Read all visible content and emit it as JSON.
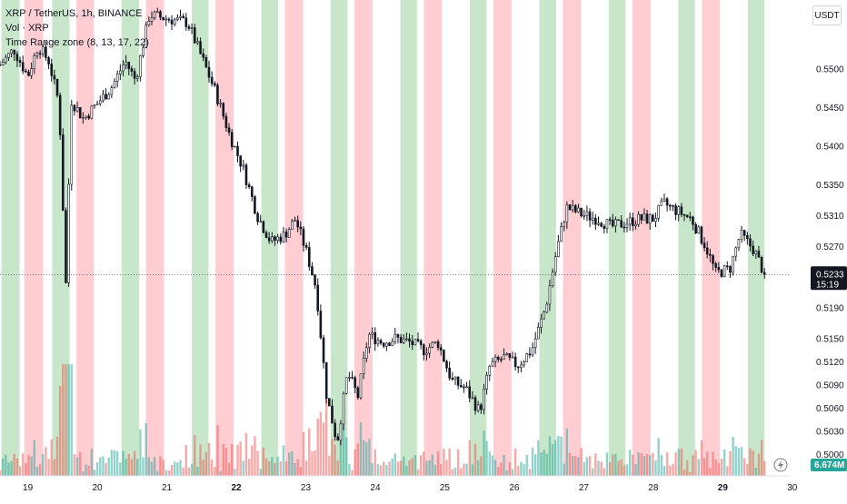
{
  "legend": {
    "symbol": "XRP / TetherUS, 1h, BINANCE",
    "volume": "Vol · XRP",
    "indicator": "Time Range zone (8, 13, 17, 22)"
  },
  "axis": {
    "currency": "USDT",
    "price_label": "0.5233",
    "countdown": "15:19",
    "volume_label": "6.674M"
  },
  "colors": {
    "up": "#26a69a",
    "down": "#ef5350",
    "candle": "#131722",
    "zone_green": "#c8e6c9",
    "zone_red": "#ffcdd2",
    "price_tag": "#131722",
    "volume_tag": "#26a69a"
  },
  "chart_data": {
    "type": "candlestick",
    "ylim": [
      0.5,
      0.5575
    ],
    "y_ticks": [
      "0.5500",
      "0.5450",
      "0.5400",
      "0.5350",
      "0.5310",
      "0.5270",
      "0.5233",
      "0.5190",
      "0.5150",
      "0.5120",
      "0.5090",
      "0.5060",
      "0.5030",
      "0.5000"
    ],
    "y_tick_values": [
      0.55,
      0.545,
      0.54,
      0.535,
      0.531,
      0.527,
      0.5233,
      0.519,
      0.515,
      0.512,
      0.509,
      0.506,
      0.503,
      0.5
    ],
    "x_ticks": [
      "19",
      "20",
      "21",
      "22",
      "23",
      "24",
      "25",
      "26",
      "27",
      "28",
      "29",
      "30"
    ],
    "bold_x_ticks": [
      "22",
      "29"
    ],
    "x_start": 18.6,
    "x_end": 29.95,
    "zones": [
      {
        "start": 18.62,
        "end": 18.88,
        "color": "green"
      },
      {
        "start": 18.95,
        "end": 19.22,
        "color": "red"
      },
      {
        "start": 19.35,
        "end": 19.6,
        "color": "green"
      },
      {
        "start": 19.7,
        "end": 19.95,
        "color": "red"
      },
      {
        "start": 20.35,
        "end": 20.6,
        "color": "green"
      },
      {
        "start": 20.7,
        "end": 20.96,
        "color": "red"
      },
      {
        "start": 21.36,
        "end": 21.6,
        "color": "green"
      },
      {
        "start": 21.7,
        "end": 21.96,
        "color": "red"
      },
      {
        "start": 22.36,
        "end": 22.6,
        "color": "green"
      },
      {
        "start": 22.7,
        "end": 22.96,
        "color": "red"
      },
      {
        "start": 23.36,
        "end": 23.6,
        "color": "green"
      },
      {
        "start": 23.7,
        "end": 23.96,
        "color": "red"
      },
      {
        "start": 24.36,
        "end": 24.6,
        "color": "green"
      },
      {
        "start": 24.7,
        "end": 24.96,
        "color": "red"
      },
      {
        "start": 25.36,
        "end": 25.6,
        "color": "green"
      },
      {
        "start": 25.7,
        "end": 25.96,
        "color": "red"
      },
      {
        "start": 26.36,
        "end": 26.6,
        "color": "green"
      },
      {
        "start": 26.7,
        "end": 26.96,
        "color": "red"
      },
      {
        "start": 27.36,
        "end": 27.6,
        "color": "green"
      },
      {
        "start": 27.7,
        "end": 27.96,
        "color": "red"
      },
      {
        "start": 28.36,
        "end": 28.6,
        "color": "green"
      },
      {
        "start": 28.7,
        "end": 28.96,
        "color": "red"
      },
      {
        "start": 29.36,
        "end": 29.6,
        "color": "green"
      }
    ],
    "candle_count": 268,
    "price_path": [
      [
        18.6,
        0.5505
      ],
      [
        18.8,
        0.5525
      ],
      [
        19.0,
        0.549
      ],
      [
        19.15,
        0.553
      ],
      [
        19.3,
        0.551
      ],
      [
        19.45,
        0.5455
      ],
      [
        19.55,
        0.5215
      ],
      [
        19.62,
        0.546
      ],
      [
        19.8,
        0.5435
      ],
      [
        20.0,
        0.5455
      ],
      [
        20.2,
        0.5475
      ],
      [
        20.4,
        0.551
      ],
      [
        20.55,
        0.5485
      ],
      [
        20.75,
        0.557
      ],
      [
        21.0,
        0.5565
      ],
      [
        21.3,
        0.556
      ],
      [
        21.5,
        0.5515
      ],
      [
        21.7,
        0.547
      ],
      [
        21.9,
        0.5415
      ],
      [
        22.1,
        0.537
      ],
      [
        22.3,
        0.531
      ],
      [
        22.5,
        0.5275
      ],
      [
        22.7,
        0.5285
      ],
      [
        22.85,
        0.5305
      ],
      [
        23.0,
        0.5265
      ],
      [
        23.15,
        0.5215
      ],
      [
        23.3,
        0.5075
      ],
      [
        23.45,
        0.5015
      ],
      [
        23.6,
        0.5105
      ],
      [
        23.75,
        0.5075
      ],
      [
        23.9,
        0.5155
      ],
      [
        24.1,
        0.5145
      ],
      [
        24.3,
        0.515
      ],
      [
        24.5,
        0.5145
      ],
      [
        24.7,
        0.5135
      ],
      [
        24.9,
        0.5145
      ],
      [
        25.1,
        0.5095
      ],
      [
        25.3,
        0.5085
      ],
      [
        25.5,
        0.5055
      ],
      [
        25.65,
        0.5115
      ],
      [
        25.85,
        0.5125
      ],
      [
        26.05,
        0.5115
      ],
      [
        26.25,
        0.5135
      ],
      [
        26.45,
        0.519
      ],
      [
        26.6,
        0.526
      ],
      [
        26.75,
        0.532
      ],
      [
        27.0,
        0.531
      ],
      [
        27.2,
        0.5305
      ],
      [
        27.4,
        0.5295
      ],
      [
        27.6,
        0.53
      ],
      [
        27.8,
        0.5305
      ],
      [
        28.0,
        0.5305
      ],
      [
        28.15,
        0.5325
      ],
      [
        28.35,
        0.5315
      ],
      [
        28.55,
        0.5305
      ],
      [
        28.75,
        0.527
      ],
      [
        28.9,
        0.5235
      ],
      [
        29.1,
        0.524
      ],
      [
        29.25,
        0.5285
      ],
      [
        29.45,
        0.5265
      ],
      [
        29.6,
        0.5233
      ]
    ],
    "last_price": 0.5233,
    "volume": {
      "visible": true,
      "position": "bottom",
      "max_bar_height_fraction": 0.06
    }
  }
}
